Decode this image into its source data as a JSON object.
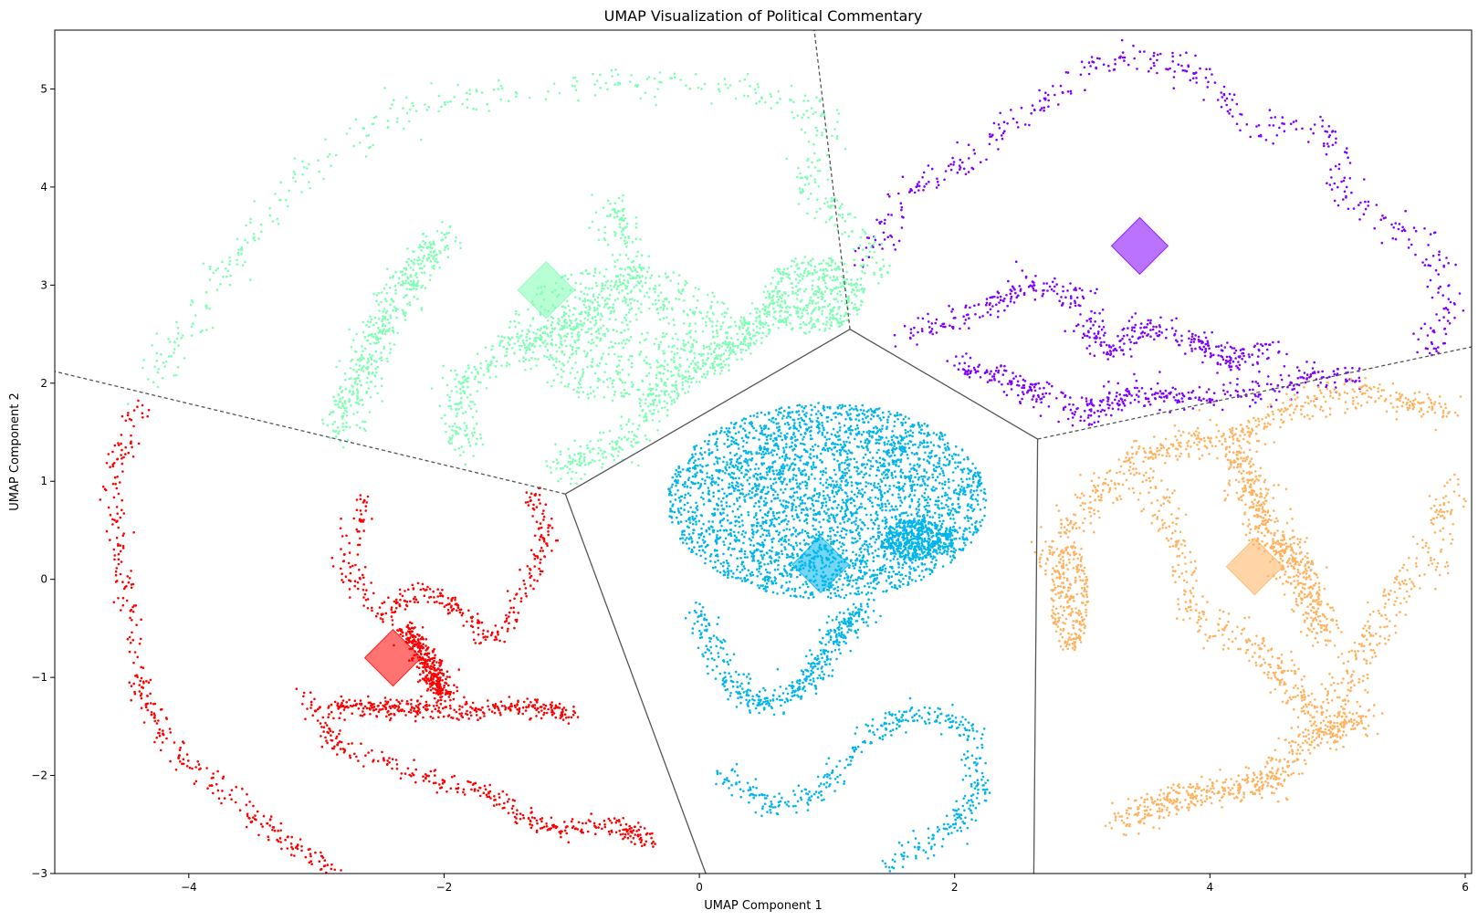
{
  "chart_data": {
    "type": "scatter",
    "title": "UMAP Visualization of Political Commentary",
    "xlabel": "UMAP Component 1",
    "ylabel": "UMAP Component 2",
    "xlim": [
      -5.05,
      6.05
    ],
    "ylim": [
      -3.0,
      5.6
    ],
    "x_ticks": [
      -4,
      -2,
      0,
      2,
      4,
      6
    ],
    "y_ticks": [
      -3,
      -2,
      -1,
      0,
      1,
      2,
      3,
      4,
      5
    ],
    "grid": false,
    "legend": "none",
    "series": [
      {
        "color": "#8000ff",
        "centroid": [
          3.45,
          3.4
        ]
      },
      {
        "color": "#00b5eb",
        "centroid": [
          0.95,
          0.15
        ]
      },
      {
        "color": "#80ffb4",
        "centroid": [
          -1.2,
          2.95
        ]
      },
      {
        "color": "#ffb360",
        "centroid": [
          4.35,
          0.13
        ]
      },
      {
        "color": "#ff0000",
        "centroid": [
          -2.4,
          -0.8
        ]
      }
    ],
    "voronoi_vertices": {
      "top_center": [
        1.18,
        2.55
      ],
      "left_center": [
        -1.05,
        0.87
      ],
      "right_center": [
        2.65,
        1.43
      ]
    },
    "voronoi_edges": [
      {
        "from": [
          1.18,
          2.55
        ],
        "to": [
          0.9,
          5.6
        ],
        "style": "dashed"
      },
      {
        "from": [
          1.18,
          2.55
        ],
        "to": [
          -1.05,
          0.87
        ],
        "style": "solid"
      },
      {
        "from": [
          1.18,
          2.55
        ],
        "to": [
          2.65,
          1.43
        ],
        "style": "solid"
      },
      {
        "from": [
          -1.05,
          0.87
        ],
        "to": [
          -5.05,
          2.12
        ],
        "style": "dashed"
      },
      {
        "from": [
          -1.05,
          0.87
        ],
        "to": [
          0.05,
          -3.0
        ],
        "style": "solid"
      },
      {
        "from": [
          2.65,
          1.43
        ],
        "to": [
          6.05,
          2.37
        ],
        "style": "dashed"
      },
      {
        "from": [
          2.65,
          1.43
        ],
        "to": [
          2.62,
          -3.0
        ],
        "style": "solid"
      }
    ]
  }
}
